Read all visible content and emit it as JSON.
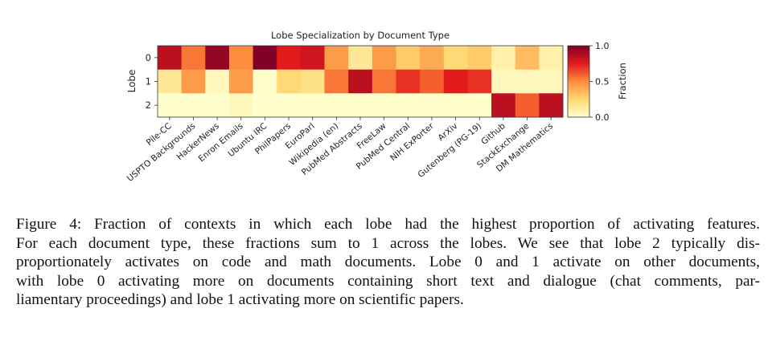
{
  "chart_data": {
    "type": "heatmap",
    "title": "Lobe Specialization by Document Type",
    "ylabel": "Lobe",
    "colorbar_label": "Fraction",
    "colorbar_ticks": [
      "1.0",
      "0.5",
      "0.0"
    ],
    "colorbar_range": [
      0,
      1
    ],
    "colormap": "YlOrRd",
    "rows": [
      "0",
      "1",
      "2"
    ],
    "columns": [
      "Pile-CC",
      "USPTO Backgrounds",
      "HackerNews",
      "Enron Emails",
      "Ubuntu IRC",
      "PhilPapers",
      "EuroParl",
      "Wikipedia (en)",
      "PubMed Abstracts",
      "FreeLaw",
      "PubMed Central",
      "NIH ExPorter",
      "ArXiv",
      "Gutenberg (PG-19)",
      "Github",
      "StackExchange",
      "DM Mathematics"
    ],
    "values": [
      [
        0.85,
        0.55,
        0.95,
        0.5,
        1.0,
        0.75,
        0.8,
        0.45,
        0.15,
        0.45,
        0.3,
        0.4,
        0.25,
        0.3,
        0.1,
        0.35,
        0.1
      ],
      [
        0.15,
        0.45,
        0.05,
        0.45,
        0.0,
        0.25,
        0.2,
        0.55,
        0.85,
        0.55,
        0.7,
        0.6,
        0.75,
        0.7,
        0.05,
        0.05,
        0.05
      ],
      [
        0.0,
        0.0,
        0.0,
        0.05,
        0.0,
        0.0,
        0.0,
        0.0,
        0.0,
        0.0,
        0.0,
        0.0,
        0.0,
        0.0,
        0.85,
        0.6,
        0.85
      ]
    ]
  },
  "caption": {
    "lines": [
      "Figure 4: Fraction of contexts in which each lobe had the highest proportion of activating features.",
      "For each document type, these fractions sum to 1 across the lobes. We see that lobe 2 typically dis-",
      "proportionately activates on code and math documents. Lobe 0 and 1 activate on other documents,",
      "with lobe 0 activating more on documents containing short text and dialogue (chat comments, par-",
      "liamentary proceedings) and lobe 1 activating more on scientific papers."
    ]
  }
}
